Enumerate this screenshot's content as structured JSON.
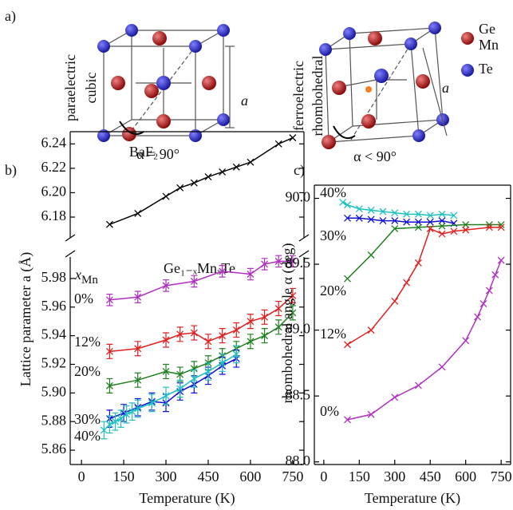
{
  "panel_labels": [
    "a)",
    "b)",
    "c)"
  ],
  "structures": [
    {
      "phase": "paraelectric",
      "lattice": "cubic",
      "angle": "α = 90°",
      "lattice_parameter": "a"
    },
    {
      "phase": "ferroelectric",
      "lattice": "rhombohedral",
      "angle": "α < 90°",
      "lattice_parameter": "a"
    }
  ],
  "atom_legend": [
    "Ge",
    "Mn",
    "Te"
  ],
  "chart_data": [
    {
      "type": "line",
      "annotation": "BaF₂",
      "xlim": [
        -40,
        790
      ],
      "ylim": [
        6.163,
        6.25
      ],
      "yticks": [
        6.18,
        {
          "value": 6.2,
          "label": "6.20"
        },
        6.22,
        6.24
      ],
      "series": [
        {
          "color": "#000000",
          "x": [
            100,
            200,
            300,
            350,
            400,
            450,
            500,
            550,
            600,
            700,
            750
          ],
          "values": [
            6.174,
            6.183,
            6.197,
            6.204,
            6.208,
            6.213,
            6.217,
            6.221,
            6.225,
            6.24,
            6.245
          ]
        }
      ]
    },
    {
      "type": "line",
      "annotation": "Ge₁₋ₓMnₓTe",
      "legend_title": {
        "main": "x",
        "sub": "Mn"
      },
      "xlabel": "Temperature (K)",
      "ylabel": "Lattice parameter a (Å)",
      "xlim": [
        -40,
        790
      ],
      "ylim": [
        5.85,
        5.995
      ],
      "xticks": [
        0,
        150,
        300,
        450,
        600,
        750
      ],
      "yticks": [
        5.86,
        5.88,
        {
          "value": 5.9,
          "label": "5.90"
        },
        5.92,
        5.94,
        5.96,
        5.98
      ],
      "series": [
        {
          "name": "0%",
          "color": "#b030c0",
          "error": 0.004,
          "x": [
            100,
            200,
            300,
            400,
            500,
            600,
            650,
            700,
            750
          ],
          "values": [
            5.965,
            5.967,
            5.975,
            5.978,
            5.985,
            5.983,
            5.99,
            5.992,
            5.992
          ]
        },
        {
          "name": "12%",
          "color": "#e02020",
          "error": 0.005,
          "x": [
            100,
            200,
            300,
            350,
            400,
            450,
            500,
            550,
            600,
            650,
            700,
            750
          ],
          "values": [
            5.929,
            5.931,
            5.937,
            5.941,
            5.942,
            5.936,
            5.94,
            5.944,
            5.95,
            5.953,
            5.959,
            5.968
          ]
        },
        {
          "name": "20%",
          "color": "#208020",
          "error": 0.005,
          "x": [
            100,
            200,
            300,
            350,
            400,
            450,
            500,
            550,
            600,
            650,
            700,
            750
          ],
          "values": [
            5.905,
            5.909,
            5.915,
            5.913,
            5.917,
            5.921,
            5.926,
            5.931,
            5.936,
            5.94,
            5.946,
            5.956
          ]
        },
        {
          "name": "30%",
          "color": "#1010d0",
          "error": 0.006,
          "x": [
            100,
            150,
            200,
            250,
            300,
            350,
            400,
            450,
            500,
            550
          ],
          "values": [
            5.882,
            5.886,
            5.89,
            5.894,
            5.893,
            5.901,
            5.906,
            5.912,
            5.919,
            5.924
          ]
        },
        {
          "name": "40%",
          "color": "#20c0c0",
          "error": 0.006,
          "x": [
            80,
            100,
            120,
            140,
            160,
            180,
            200,
            250,
            300,
            350,
            400,
            450,
            500,
            550
          ],
          "values": [
            5.874,
            5.878,
            5.88,
            5.882,
            5.885,
            5.887,
            5.889,
            5.893,
            5.898,
            5.903,
            5.91,
            5.915,
            5.921,
            5.927
          ]
        }
      ]
    },
    {
      "type": "line",
      "xlabel": "Temperature (K)",
      "ylabel": "rhombohedral angle α (deg)",
      "xlim": [
        -40,
        790
      ],
      "ylim": [
        87.98,
        90.1
      ],
      "xticks": [
        0,
        150,
        300,
        450,
        600,
        750
      ],
      "yticks": [
        {
          "value": 88,
          "label": "88.0"
        },
        88.5,
        {
          "value": 89,
          "label": "89.0"
        },
        89.5,
        {
          "value": 90,
          "label": "90.0"
        }
      ],
      "series": [
        {
          "name": "40%",
          "color": "#20c0c0",
          "x": [
            80,
            100,
            150,
            200,
            250,
            300,
            350,
            400,
            450,
            500,
            550
          ],
          "values": [
            89.97,
            89.95,
            89.92,
            89.91,
            89.9,
            89.89,
            89.88,
            89.88,
            89.87,
            89.88,
            89.87
          ]
        },
        {
          "name": "30%",
          "color": "#1010d0",
          "x": [
            100,
            150,
            200,
            250,
            300,
            350,
            400,
            450,
            500,
            550
          ],
          "values": [
            89.85,
            89.85,
            89.84,
            89.83,
            89.83,
            89.82,
            89.82,
            89.82,
            89.83,
            89.81
          ]
        },
        {
          "name": "20%",
          "color": "#208020",
          "x": [
            100,
            200,
            300,
            400,
            500,
            600,
            700,
            750
          ],
          "values": [
            89.39,
            89.57,
            89.77,
            89.78,
            89.79,
            89.8,
            89.8,
            89.8
          ]
        },
        {
          "name": "12%",
          "color": "#e02020",
          "x": [
            100,
            200,
            300,
            350,
            400,
            450,
            500,
            550,
            600,
            700,
            750
          ],
          "values": [
            88.89,
            89.0,
            89.22,
            89.36,
            89.51,
            89.77,
            89.73,
            89.75,
            89.76,
            89.78,
            89.78
          ]
        },
        {
          "name": "0%",
          "color": "#b030c0",
          "x": [
            100,
            200,
            300,
            400,
            500,
            600,
            650,
            675,
            700,
            725,
            750
          ],
          "values": [
            88.32,
            88.36,
            88.49,
            88.58,
            88.72,
            88.92,
            89.1,
            89.2,
            89.3,
            89.42,
            89.53
          ]
        }
      ]
    }
  ]
}
